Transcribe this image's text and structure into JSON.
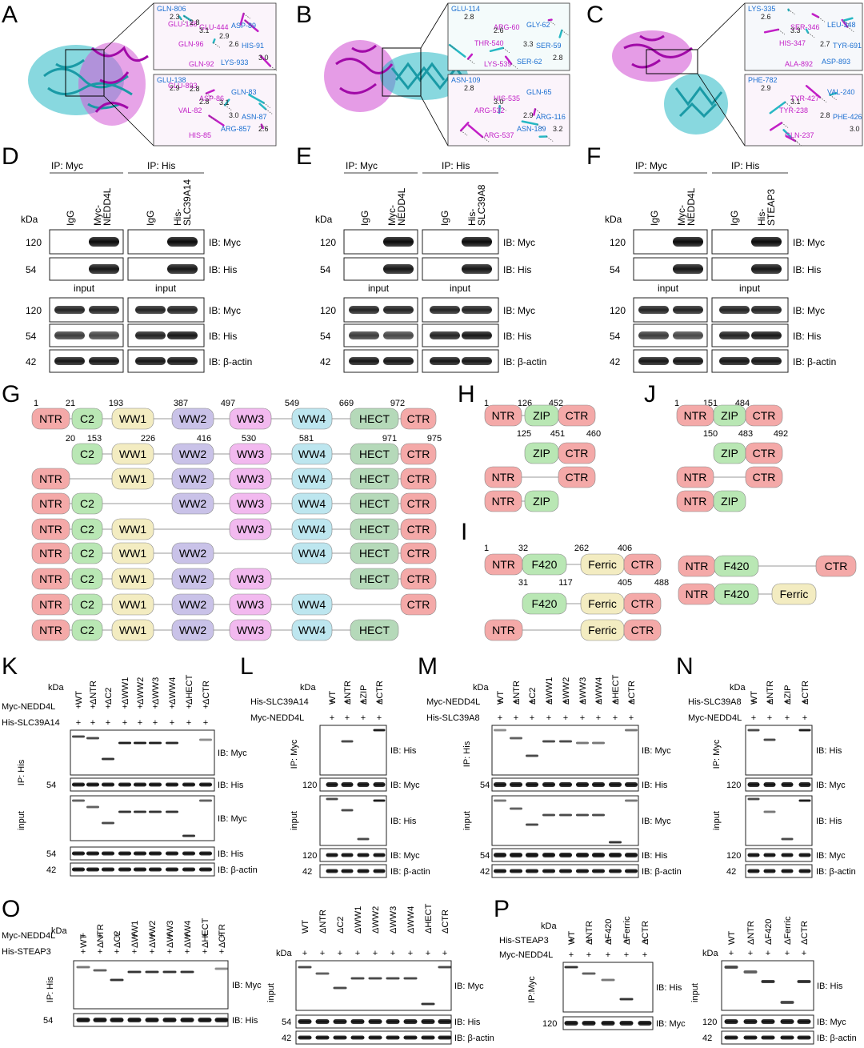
{
  "panels": {
    "A": "A",
    "B": "B",
    "C": "C",
    "D": "D",
    "E": "E",
    "F": "F",
    "G": "G",
    "H": "H",
    "I": "I",
    "J": "J",
    "K": "K",
    "L": "L",
    "M": "M",
    "N": "N",
    "O": "O",
    "P": "P"
  },
  "common": {
    "kda": "kDa",
    "ip_myc": "IP: Myc",
    "ip_his": "IP: His",
    "ip_his_v": "IP: His",
    "ip_myc_v": "IP: Myc",
    "ipmyc_nospace": "IP:Myc",
    "igg": "IgG",
    "input": "input",
    "ib_myc": "IB: Myc",
    "ib_his": "IB: His",
    "ib_actin": "IB: β-actin",
    "mw120": "120",
    "mw54": "54",
    "mw42": "42",
    "plus": "+",
    "myc_nedd4l_l1": "Myc-",
    "myc_nedd4l_l2": "NEDD4L",
    "wt": "WT"
  },
  "coip": {
    "D": {
      "partner_l1": "His-",
      "partner_l2": "SLC39A14"
    },
    "E": {
      "partner_l1": "His-",
      "partner_l2": "SLC39A8"
    },
    "F": {
      "partner_l1": "His-",
      "partner_l2": "STEAP3"
    }
  },
  "structure_labels": {
    "A": [
      "GLN-806",
      "GLU-444",
      "HIS-91",
      "GLN-92",
      "ASP-89",
      "GLN-96",
      "LYS-933",
      "GLU-138",
      "ASP-86",
      "ASN-87",
      "HIS-85",
      "GLN-83",
      "VAL-82",
      "ARG-857",
      "GLU-893"
    ],
    "B": [
      "GLU-114",
      "ARG-60",
      "SER-59",
      "LYS-539",
      "GLY-62",
      "THR-540",
      "SER-62",
      "ASN-109",
      "HIS-535",
      "ARG-116",
      "ARG-537",
      "GLN-65",
      "ARG-532",
      "ASN-189"
    ],
    "C": [
      "LYS-335",
      "SER-346",
      "TYR-691",
      "ALA-892",
      "LEU-348",
      "HIS-347",
      "ASP-893",
      "PHE-782",
      "TYR-427",
      "PHE-426",
      "GLN-237",
      "VAL-240",
      "TYR-238"
    ]
  },
  "distances": {
    "A": [
      "2.3",
      "3.1",
      "2.6",
      "3.0",
      "2.8",
      "2.9",
      "2.8",
      "3.0",
      "2.6",
      "2.8",
      "3.1"
    ],
    "B": [
      "2.8",
      "2.6",
      "3.3",
      "2.8",
      "3.0",
      "2.9",
      "3.2"
    ],
    "C": [
      "2.6",
      "3.3",
      "2.7",
      "2.9",
      "3.1",
      "2.8",
      "3.0"
    ]
  },
  "domains": {
    "NTR": "NTR",
    "C2": "C2",
    "WW1": "WW1",
    "WW2": "WW2",
    "WW3": "WW3",
    "WW4": "WW4",
    "HECT": "HECT",
    "CTR": "CTR",
    "ZIP": "ZIP",
    "F420": "F420",
    "Ferric": "Ferric"
  },
  "G_numbers": {
    "top": [
      "1",
      "21",
      "193",
      "387",
      "497",
      "549",
      "669",
      "972"
    ],
    "bottom": [
      "20",
      "153",
      "226",
      "416",
      "530",
      "581",
      "971",
      "975"
    ]
  },
  "H_numbers": {
    "top": [
      "1",
      "126",
      "452"
    ],
    "bottom": [
      "125",
      "451",
      "460"
    ]
  },
  "J_numbers": {
    "top": [
      "1",
      "151",
      "484"
    ],
    "bottom": [
      "150",
      "483",
      "492"
    ]
  },
  "I_numbers": {
    "top": [
      "1",
      "32",
      "262",
      "406"
    ],
    "bottom": [
      "31",
      "117",
      "405",
      "488"
    ]
  },
  "mutants": {
    "nedd4l": [
      "WT",
      "ΔNTR",
      "ΔC2",
      "ΔWW1",
      "ΔWW2",
      "ΔWW3",
      "ΔWW4",
      "ΔHECT",
      "ΔCTR"
    ],
    "zip": [
      "WT",
      "ΔNTR",
      "ΔZIP",
      "ΔCTR"
    ],
    "steap3": [
      "WT",
      "ΔNTR",
      "ΔF420",
      "ΔFerric",
      "ΔCTR"
    ]
  },
  "rowlabels": {
    "myc_nedd4l": "Myc-NEDD4L",
    "his_slc39a14": "His-SLC39A14",
    "his_slc39a8": "His-SLC39A8",
    "his_steap3": "His-STEAP3"
  },
  "colors": {
    "magenta": "#c21fc6",
    "cyan": "#27b8c4",
    "NTR": "#f4a9a8",
    "C2": "#b9e7b4",
    "WW1": "#f3ecc1",
    "WW2": "#c9c2e8",
    "WW3": "#f2b9ef",
    "WW4": "#bde6ef",
    "HECT": "#b5d9b9",
    "CTR": "#f4a9a8",
    "ZIP": "#b9e7b4",
    "F420": "#b9e7b4",
    "Ferric": "#f3ecc1"
  }
}
